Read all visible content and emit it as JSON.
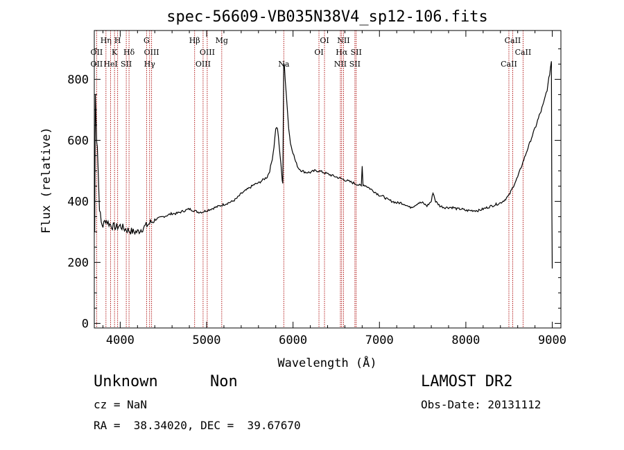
{
  "chart_data": {
    "type": "line",
    "title": "spec-56609-VB035N38V4_sp12-106.fits",
    "xlabel": "Wavelength (Å)",
    "ylabel": "Flux (relative)",
    "xlim": [
      3700,
      9100
    ],
    "ylim": [
      -15,
      960
    ],
    "xticks": [
      4000,
      5000,
      6000,
      7000,
      8000,
      9000
    ],
    "yticks": [
      0,
      200,
      400,
      600,
      800
    ],
    "grid": false,
    "series": [
      {
        "x": [
          3705,
          3712,
          3720,
          3728,
          3735,
          3745,
          3760,
          3780,
          3800,
          3830,
          3860,
          3900,
          3950,
          4000,
          4050,
          4100,
          4150,
          4200,
          4250,
          4300,
          4350,
          4400,
          4450,
          4500,
          4550,
          4600,
          4650,
          4700,
          4750,
          4800,
          4850,
          4900,
          4950,
          5000,
          5050,
          5100,
          5150,
          5200,
          5250,
          5300,
          5350,
          5400,
          5450,
          5500,
          5550,
          5600,
          5650,
          5700,
          5730,
          5760,
          5780,
          5800,
          5820,
          5840,
          5860,
          5875,
          5882,
          5888,
          5892,
          5900,
          5910,
          5920,
          5935,
          5950,
          5970,
          6000,
          6030,
          6060,
          6100,
          6150,
          6200,
          6250,
          6300,
          6350,
          6400,
          6450,
          6500,
          6550,
          6600,
          6650,
          6700,
          6750,
          6790,
          6800,
          6810,
          6850,
          6900,
          6950,
          7000,
          7050,
          7100,
          7150,
          7200,
          7250,
          7300,
          7350,
          7400,
          7450,
          7500,
          7550,
          7600,
          7620,
          7650,
          7700,
          7750,
          7800,
          7850,
          7900,
          7950,
          8000,
          8050,
          8100,
          8150,
          8200,
          8250,
          8300,
          8350,
          8400,
          8450,
          8500,
          8550,
          8600,
          8650,
          8700,
          8750,
          8800,
          8850,
          8900,
          8950,
          8970,
          8990,
          8995,
          9000
        ],
        "y": [
          300,
          750,
          680,
          600,
          580,
          500,
          380,
          330,
          320,
          340,
          330,
          320,
          315,
          320,
          310,
          305,
          300,
          300,
          310,
          320,
          330,
          340,
          345,
          350,
          355,
          360,
          360,
          365,
          370,
          375,
          370,
          365,
          365,
          370,
          375,
          380,
          385,
          390,
          395,
          400,
          410,
          425,
          435,
          445,
          455,
          460,
          470,
          480,
          500,
          540,
          580,
          640,
          640,
          580,
          520,
          470,
          460,
          700,
          850,
          845,
          800,
          760,
          700,
          640,
          590,
          560,
          530,
          510,
          500,
          495,
          495,
          500,
          500,
          495,
          490,
          485,
          480,
          475,
          470,
          465,
          460,
          455,
          450,
          515,
          455,
          450,
          440,
          430,
          420,
          415,
          405,
          400,
          395,
          395,
          390,
          380,
          385,
          395,
          395,
          385,
          400,
          430,
          400,
          385,
          380,
          380,
          380,
          375,
          375,
          370,
          370,
          370,
          370,
          375,
          380,
          385,
          390,
          395,
          405,
          420,
          450,
          480,
          520,
          560,
          600,
          640,
          680,
          720,
          780,
          820,
          860,
          400,
          180
        ]
      }
    ],
    "lines": [
      {
        "label": "OII",
        "x": 3727,
        "row": 2
      },
      {
        "label": "OII",
        "x": 3727,
        "row": 3
      },
      {
        "label": "Hη",
        "x": 3835,
        "row": 1
      },
      {
        "label": "H",
        "x": 3970,
        "row": 1
      },
      {
        "label": "K",
        "x": 3934,
        "row": 2
      },
      {
        "label": "HeI",
        "x": 3889,
        "row": 3
      },
      {
        "label": "SII",
        "x": 4070,
        "row": 3
      },
      {
        "label": "Hδ",
        "x": 4102,
        "row": 2
      },
      {
        "label": "G",
        "x": 4305,
        "row": 1
      },
      {
        "label": "OIII",
        "x": 4363,
        "row": 2
      },
      {
        "label": "Hγ",
        "x": 4340,
        "row": 3
      },
      {
        "label": "Hβ",
        "x": 4861,
        "row": 1
      },
      {
        "label": "OIII",
        "x": 5007,
        "row": 2
      },
      {
        "label": "OIII",
        "x": 4959,
        "row": 3
      },
      {
        "label": "Mg",
        "x": 5175,
        "row": 1
      },
      {
        "label": "Na",
        "x": 5893,
        "row": 3
      },
      {
        "label": "OI",
        "x": 6364,
        "row": 1
      },
      {
        "label": "OI",
        "x": 6300,
        "row": 2
      },
      {
        "label": "NII",
        "x": 6584,
        "row": 1
      },
      {
        "label": "Hα",
        "x": 6563,
        "row": 2
      },
      {
        "label": "SII",
        "x": 6731,
        "row": 2
      },
      {
        "label": "NII",
        "x": 6548,
        "row": 3
      },
      {
        "label": "SII",
        "x": 6716,
        "row": 3
      },
      {
        "label": "CaII",
        "x": 8542,
        "row": 1
      },
      {
        "label": "CaII",
        "x": 8662,
        "row": 2
      },
      {
        "label": "CaII",
        "x": 8498,
        "row": 3
      }
    ],
    "line_color": "#aa0000"
  },
  "info": {
    "class": "Unknown",
    "subclass": "Non",
    "cz": "cz = NaN",
    "radec": "RA =  38.34020, DEC =  39.67670",
    "survey": "LAMOST DR2",
    "obsdate": "Obs-Date: 20131112"
  }
}
